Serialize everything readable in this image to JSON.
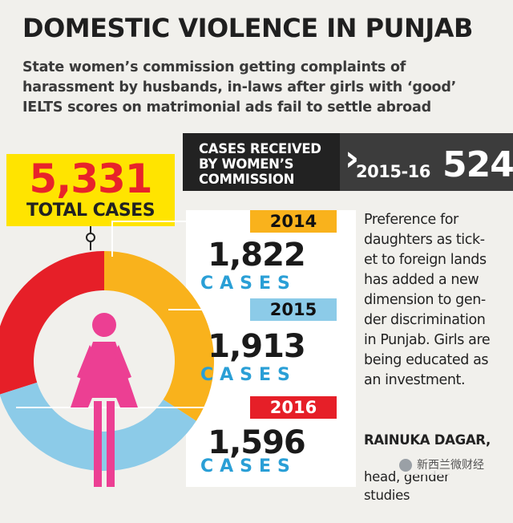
{
  "title": "DOMESTIC VIOLENCE IN PUNJAB",
  "subtitle": "State women’s commission getting complaints of harassment by husbands, in-laws after girls with ‘good’ IELTS scores on matrimonial ads fail to settle abroad",
  "received_box": {
    "label": "CASES RECEIVED\nBY WOMEN’S\nCOMMISSION",
    "year": "2015-16",
    "value": "524"
  },
  "total": {
    "value": "5,331",
    "label": "TOTAL CASES"
  },
  "quote": {
    "text": "Preference for\ndaughters as tick-\net to foreign lands\nhas added a new\ndimension to gen-\nder discrimination\nin Punjab. Girls are\nbeing educated as\nan investment.",
    "name": "RAINUKA DAGAR,",
    "role": "head, gender\nstudies"
  },
  "watermark": "新西兰微财经",
  "icons": {
    "chevron": "chevron-right-icon",
    "pin": "pin-icon",
    "figure": "female-figure-icon",
    "watermark": "wechat-logo-icon"
  },
  "colors": {
    "2014": "#f9b21c",
    "2015": "#8ccbe8",
    "2016": "#e61f28",
    "figure": "#ec3f93",
    "total_bg": "#ffe400",
    "units": "#2a9fd6"
  },
  "chart_data": {
    "type": "pie",
    "variant": "donut",
    "categories": [
      "2014",
      "2015",
      "2016"
    ],
    "values": [
      1822,
      1913,
      1596
    ],
    "value_labels": [
      "1,822",
      "1,913",
      "1,596"
    ],
    "unit_label": "CASES",
    "total": 5331
  }
}
